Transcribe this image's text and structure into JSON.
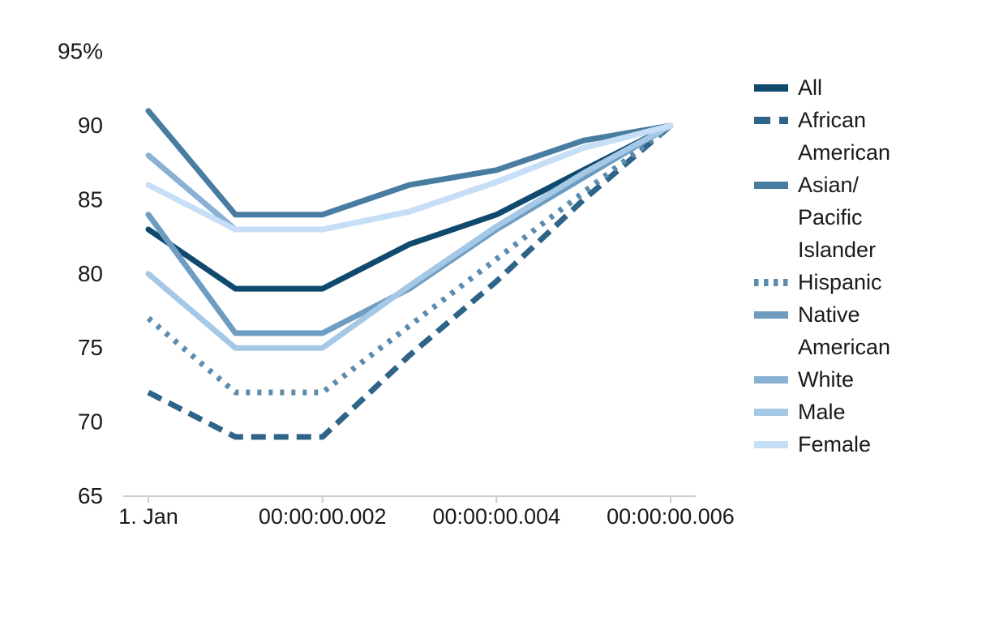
{
  "chart_data": {
    "type": "line",
    "title": "",
    "xlabel": "",
    "ylabel": "",
    "x_axis_kind": "datetime-milliseconds",
    "x": [
      0,
      1,
      2,
      3,
      4,
      5,
      6
    ],
    "x_tick_positions": [
      0,
      2,
      4,
      6
    ],
    "x_tick_labels": [
      "1. Jan",
      "00:00:00.002",
      "00:00:00.004",
      "00:00:00.006"
    ],
    "y_ticks": [
      65,
      70,
      75,
      80,
      85,
      90,
      95
    ],
    "y_tick_labels": [
      "65",
      "70",
      "75",
      "80",
      "85",
      "90",
      "95%"
    ],
    "ylim": [
      65,
      95
    ],
    "xlim": [
      -0.3,
      6.3
    ],
    "grid": "off",
    "legend_position": "right",
    "axis_color": "#cccccc",
    "label_color": "#1a1a1a",
    "series": [
      {
        "name": "All",
        "color": "#0F4A6E",
        "dash": "solid",
        "values": [
          83,
          79,
          79,
          82,
          84,
          87,
          90
        ]
      },
      {
        "name": "African American",
        "color": "#2D6487",
        "dash": "dashed",
        "values": [
          72,
          69,
          69,
          74.5,
          79.5,
          85,
          90
        ]
      },
      {
        "name": "Asian/Pacific Islander",
        "color": "#487CA0",
        "dash": "solid",
        "values": [
          91,
          84,
          84,
          86,
          87,
          89,
          90
        ]
      },
      {
        "name": "Hispanic",
        "color": "#5B8BAD",
        "dash": "dotted",
        "values": [
          77,
          72,
          72,
          76.5,
          81,
          85.5,
          90
        ]
      },
      {
        "name": "Native American",
        "color": "#6F9DC2",
        "dash": "solid",
        "values": [
          84,
          76,
          76,
          79,
          83,
          86.5,
          90
        ]
      },
      {
        "name": "White",
        "color": "#8AB1D4",
        "dash": "solid",
        "values": [
          88,
          83,
          83,
          84.2,
          86.2,
          88.5,
          90
        ]
      },
      {
        "name": "Male",
        "color": "#A4C8E6",
        "dash": "solid",
        "values": [
          80,
          75,
          75,
          79.2,
          83.2,
          86.8,
          90
        ]
      },
      {
        "name": "Female",
        "color": "#C6DFF7",
        "dash": "solid",
        "values": [
          86,
          83,
          83,
          84.2,
          86.2,
          88.5,
          90
        ]
      }
    ]
  }
}
